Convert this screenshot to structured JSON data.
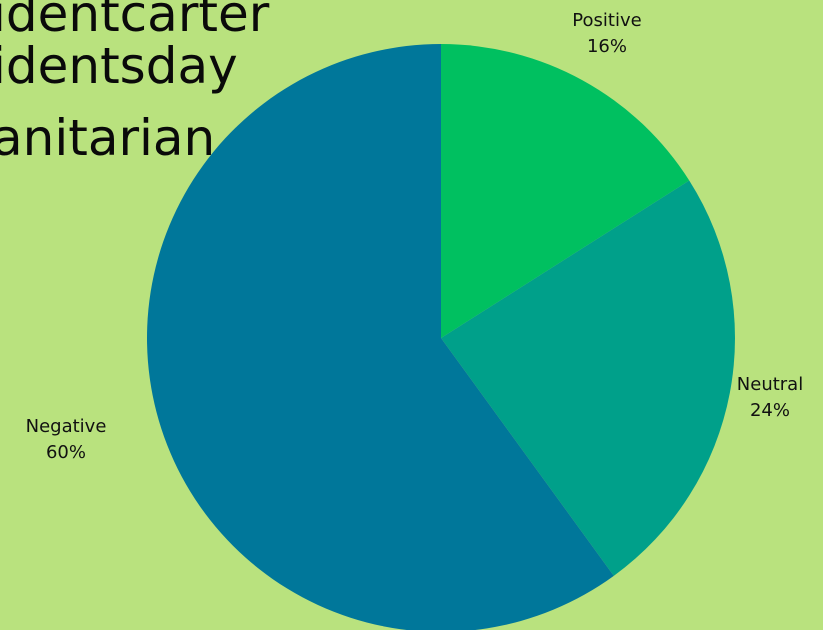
{
  "heading_fragments": [
    "identcarter",
    "identsday",
    "anitarian"
  ],
  "chart_data": {
    "type": "pie",
    "title": "",
    "start_angle_deg": 0,
    "direction": "clockwise",
    "slices": [
      {
        "label": "Positive",
        "value": 16,
        "value_text": "16%",
        "color": "#00c060"
      },
      {
        "label": "Neutral",
        "value": 24,
        "value_text": "24%",
        "color": "#00a08a"
      },
      {
        "label": "Negative",
        "value": 60,
        "value_text": "60%",
        "color": "#00779a"
      }
    ]
  }
}
